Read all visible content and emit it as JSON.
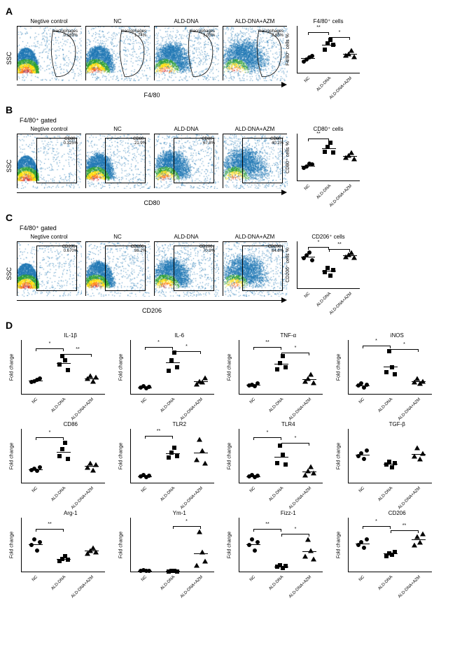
{
  "flow_plot_size": {
    "w": 92,
    "h": 78
  },
  "scatter_size": {
    "w": 90,
    "h": 68
  },
  "d_chart_size": {
    "w": 120,
    "h": 78
  },
  "panels": {
    "A": {
      "subtitle": "",
      "x_axis": "F4/80",
      "plots": [
        {
          "title": "Negtive control",
          "gate": "macrophages\n0.169%",
          "gate_style": "curve"
        },
        {
          "title": "NC",
          "gate": "macrophages\n1.74%",
          "gate_style": "curve"
        },
        {
          "title": "ALD-DNA",
          "gate": "macrophages\n3.05%",
          "gate_style": "curve"
        },
        {
          "title": "ALD-DNA+AZM",
          "gate": "macrophages\n2.65%",
          "gate_style": "curve"
        }
      ],
      "scatter": {
        "title": "F4/80⁺ cells",
        "ylabel": "F4/80⁺ cells %",
        "ylim": [
          0,
          6
        ],
        "groups": [
          "NC",
          "ALD-DNA",
          "ALD-DNA+AZM"
        ],
        "markers": [
          "circle",
          "square",
          "triangle"
        ],
        "data": [
          [
            1.5,
            1.8,
            2.0,
            2.2
          ],
          [
            3.0,
            3.8,
            4.2,
            3.6
          ],
          [
            2.3,
            2.5,
            2.9,
            2.1
          ]
        ],
        "means": [
          1.9,
          3.65,
          2.45
        ],
        "sig": [
          {
            "from": 0,
            "to": 1,
            "label": "**",
            "y": 5.2
          },
          {
            "from": 1,
            "to": 2,
            "label": "*",
            "y": 4.6
          }
        ]
      }
    },
    "B": {
      "subtitle": "F4/80⁺ gated",
      "x_axis": "CD80",
      "plots": [
        {
          "title": "Negtive control",
          "gate": "CD80+\n0.325%",
          "gate_style": "box"
        },
        {
          "title": "NC",
          "gate": "CD80+\n21.9%",
          "gate_style": "box"
        },
        {
          "title": "ALD-DNA",
          "gate": "CD80+\n67.8%",
          "gate_style": "box"
        },
        {
          "title": "ALD-DNA+AZM",
          "gate": "CD80+\n40.2%",
          "gate_style": "box"
        }
      ],
      "scatter": {
        "title": "CD80⁺ cells",
        "ylabel": "CD80⁺ cells %",
        "ylim": [
          0,
          80
        ],
        "groups": [
          "NC",
          "ALD-DNA",
          "ALD-DNA+AZM"
        ],
        "markers": [
          "circle",
          "square",
          "triangle"
        ],
        "data": [
          [
            22,
            25,
            30,
            28
          ],
          [
            50,
            58,
            65,
            48
          ],
          [
            40,
            44,
            48,
            38
          ]
        ],
        "means": [
          26,
          55,
          42
        ],
        "sig": [
          {
            "from": 0,
            "to": 1,
            "label": "**",
            "y": 72
          }
        ]
      }
    },
    "C": {
      "subtitle": "F4/80⁺ gated",
      "x_axis": "CD206",
      "plots": [
        {
          "title": "Negtive control",
          "gate": "CD206+\n0.670%",
          "gate_style": "box"
        },
        {
          "title": "NC",
          "gate": "CD206+\n86.2%",
          "gate_style": "box"
        },
        {
          "title": "ALD-DNA",
          "gate": "CD206+\n70.9%",
          "gate_style": "box"
        },
        {
          "title": "ALD-DNA+AZM",
          "gate": "CD206+\n84.6%",
          "gate_style": "box"
        }
      ],
      "scatter": {
        "title": "CD206⁺ cells",
        "ylabel": "CD206⁺ cells %",
        "ylim": [
          50,
          100
        ],
        "groups": [
          "NC",
          "ALD-DNA",
          "ALD-DNA+AZM"
        ],
        "markers": [
          "circle",
          "square",
          "triangle"
        ],
        "data": [
          [
            82,
            85,
            88,
            80
          ],
          [
            68,
            72,
            64,
            70
          ],
          [
            84,
            86,
            88,
            83
          ]
        ],
        "means": [
          84,
          69,
          85
        ],
        "sig": [
          {
            "from": 0,
            "to": 1,
            "label": "*",
            "y": 94
          },
          {
            "from": 1,
            "to": 2,
            "label": "**",
            "y": 92
          }
        ]
      }
    }
  },
  "panel_D": {
    "groups": [
      "NC",
      "ALD-DNA",
      "ALD-DNA+AZM"
    ],
    "markers": [
      "circle",
      "square",
      "triangle"
    ],
    "ylabel": "Fold change",
    "charts": [
      {
        "title": "IL-1β",
        "ylim": [
          0,
          4
        ],
        "data": [
          [
            0.9,
            1.0,
            1.1,
            1.2
          ],
          [
            2.2,
            2.8,
            2.5,
            1.8
          ],
          [
            1.2,
            1.4,
            1.0,
            1.3
          ]
        ],
        "means": [
          1.05,
          2.3,
          1.2
        ],
        "sig": [
          {
            "from": 0,
            "to": 1,
            "label": "*",
            "y": 3.4
          },
          {
            "from": 1,
            "to": 2,
            "label": "**",
            "y": 3.0
          }
        ]
      },
      {
        "title": "IL-6",
        "ylim": [
          0,
          8
        ],
        "data": [
          [
            1.0,
            1.2,
            0.9,
            1.1
          ],
          [
            3.5,
            5.0,
            6.2,
            4.0
          ],
          [
            1.5,
            2.0,
            1.8,
            2.5
          ]
        ],
        "means": [
          1.05,
          4.7,
          1.95
        ],
        "sig": [
          {
            "from": 0,
            "to": 1,
            "label": "*",
            "y": 7.0
          },
          {
            "from": 1,
            "to": 2,
            "label": "*",
            "y": 6.4
          }
        ]
      },
      {
        "title": "TNF-α",
        "ylim": [
          0,
          6
        ],
        "data": [
          [
            1.0,
            1.1,
            0.9,
            1.2
          ],
          [
            2.8,
            3.5,
            4.2,
            3.0
          ],
          [
            1.5,
            1.8,
            2.2,
            1.3
          ]
        ],
        "means": [
          1.05,
          3.4,
          1.7
        ],
        "sig": [
          {
            "from": 0,
            "to": 1,
            "label": "**",
            "y": 5.2
          },
          {
            "from": 1,
            "to": 2,
            "label": "*",
            "y": 4.6
          }
        ]
      },
      {
        "title": "iNOS",
        "ylim": [
          0,
          6
        ],
        "data": [
          [
            1.0,
            1.2,
            0.8,
            1.1
          ],
          [
            2.5,
            4.8,
            3.0,
            2.2
          ],
          [
            1.4,
            1.8,
            1.2,
            1.5
          ]
        ],
        "means": [
          1.0,
          3.1,
          1.5
        ],
        "sig": [
          {
            "from": 0,
            "to": 1,
            "label": "*",
            "y": 5.4
          },
          {
            "from": 1,
            "to": 2,
            "label": "*",
            "y": 5.0
          }
        ]
      },
      {
        "title": "CD86",
        "ylim": [
          0,
          4
        ],
        "data": [
          [
            1.0,
            1.1,
            0.9,
            1.2
          ],
          [
            2.0,
            2.5,
            3.0,
            1.8
          ],
          [
            1.2,
            1.5,
            1.0,
            1.4
          ]
        ],
        "means": [
          1.05,
          2.3,
          1.3
        ],
        "sig": [
          {
            "from": 0,
            "to": 1,
            "label": "*",
            "y": 3.4
          }
        ]
      },
      {
        "title": "TLR2",
        "ylim": [
          0,
          8
        ],
        "data": [
          [
            1.0,
            1.2,
            0.9,
            1.1
          ],
          [
            3.8,
            4.5,
            5.2,
            4.0
          ],
          [
            3.5,
            6.5,
            4.8,
            3.0
          ]
        ],
        "means": [
          1.05,
          4.4,
          4.5
        ],
        "sig": [
          {
            "from": 0,
            "to": 1,
            "label": "**",
            "y": 7.0
          }
        ]
      },
      {
        "title": "TLR4",
        "ylim": [
          0,
          8
        ],
        "data": [
          [
            1.0,
            1.2,
            0.9,
            1.1
          ],
          [
            3.0,
            5.5,
            4.2,
            2.8
          ],
          [
            1.2,
            1.8,
            2.5,
            1.5
          ]
        ],
        "means": [
          1.05,
          3.9,
          1.75
        ],
        "sig": [
          {
            "from": 0,
            "to": 1,
            "label": "*",
            "y": 6.8
          },
          {
            "from": 1,
            "to": 2,
            "label": "*",
            "y": 6.0
          }
        ]
      },
      {
        "title": "TGF-β",
        "ylim": [
          0,
          2
        ],
        "data": [
          [
            1.0,
            1.1,
            0.9,
            1.2
          ],
          [
            0.7,
            0.8,
            0.6,
            0.75
          ],
          [
            1.0,
            1.3,
            0.9,
            1.1
          ]
        ],
        "means": [
          1.05,
          0.72,
          1.07
        ],
        "sig": []
      },
      {
        "title": "Arg-1",
        "ylim": [
          0,
          2
        ],
        "data": [
          [
            1.0,
            1.2,
            0.8,
            1.1
          ],
          [
            0.4,
            0.5,
            0.6,
            0.45
          ],
          [
            0.7,
            0.8,
            0.9,
            0.75
          ]
        ],
        "means": [
          1.02,
          0.49,
          0.79
        ],
        "sig": [
          {
            "from": 0,
            "to": 1,
            "label": "**",
            "y": 1.6
          }
        ]
      },
      {
        "title": "Ym-1",
        "ylim": [
          0,
          40
        ],
        "data": [
          [
            1.0,
            1.5,
            0.8,
            1.2
          ],
          [
            0.5,
            0.8,
            1.2,
            0.6
          ],
          [
            5,
            30,
            15,
            8
          ]
        ],
        "means": [
          1.1,
          0.78,
          14
        ],
        "sig": [
          {
            "from": 1,
            "to": 2,
            "label": "*",
            "y": 34
          }
        ]
      },
      {
        "title": "Fizz-1",
        "ylim": [
          0,
          2
        ],
        "data": [
          [
            1.0,
            1.2,
            0.8,
            1.1
          ],
          [
            0.2,
            0.25,
            0.15,
            0.22
          ],
          [
            0.6,
            1.2,
            0.8,
            0.5
          ]
        ],
        "means": [
          1.02,
          0.21,
          0.78
        ],
        "sig": [
          {
            "from": 0,
            "to": 1,
            "label": "**",
            "y": 1.6
          },
          {
            "from": 1,
            "to": 2,
            "label": "*",
            "y": 1.4
          }
        ]
      },
      {
        "title": "CD206",
        "ylim": [
          0,
          2
        ],
        "data": [
          [
            1.0,
            1.1,
            0.9,
            1.2
          ],
          [
            0.6,
            0.7,
            0.65,
            0.75
          ],
          [
            1.0,
            1.3,
            1.1,
            1.4
          ]
        ],
        "means": [
          1.05,
          0.68,
          1.2
        ],
        "sig": [
          {
            "from": 0,
            "to": 1,
            "label": "*",
            "y": 1.7
          },
          {
            "from": 1,
            "to": 2,
            "label": "**",
            "y": 1.55
          }
        ]
      }
    ]
  }
}
